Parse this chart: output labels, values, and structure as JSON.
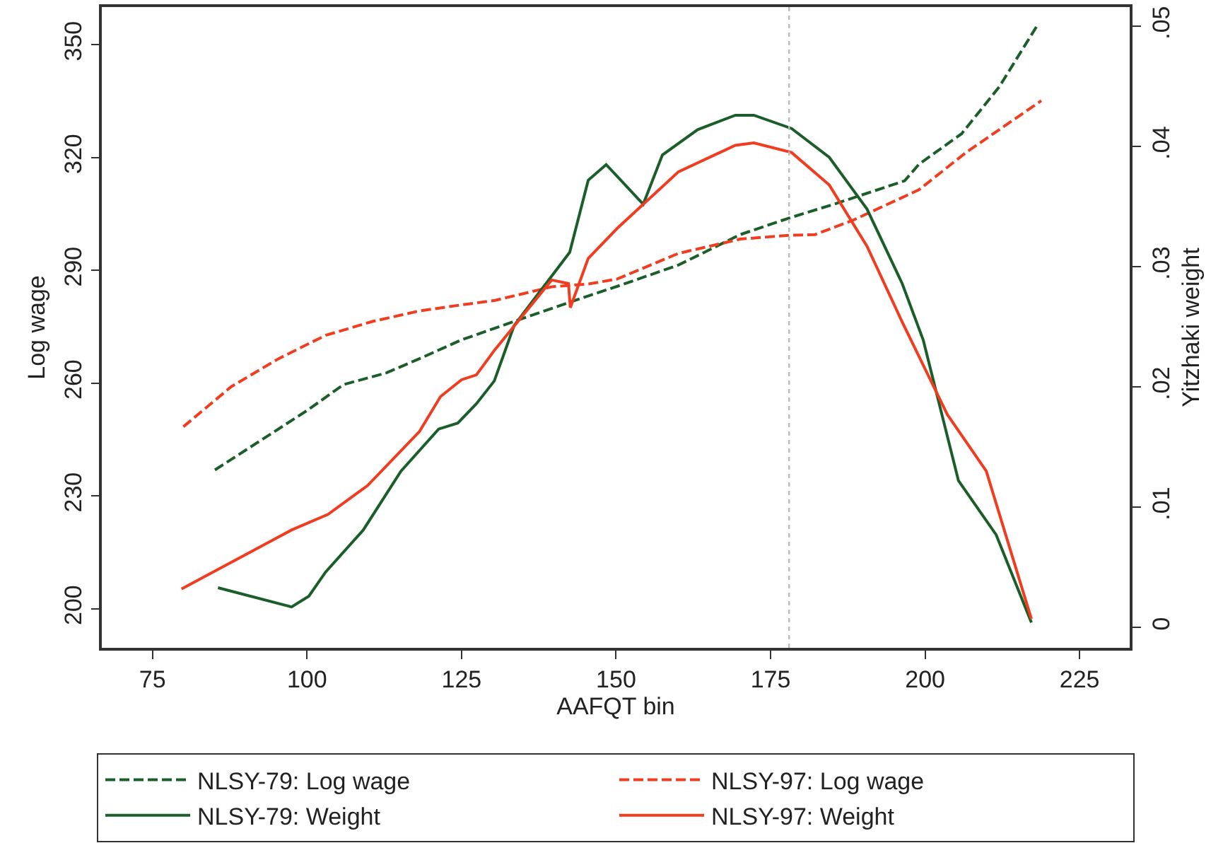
{
  "chart_data": {
    "type": "line",
    "xlabel": "AAFQT bin",
    "ylabel": "Log wage",
    "y2label": "Yitzhaki weight",
    "xlim": [
      66.8,
      233.1
    ],
    "xticks": [
      75,
      100,
      125,
      150,
      175,
      200,
      225
    ],
    "ylim": [
      189.6,
      360
    ],
    "yticks": [
      200,
      230,
      260,
      290,
      320,
      350
    ],
    "y2lim": [
      -0.0017,
      0.0516
    ],
    "y2ticks": [
      {
        "value": 0,
        "label": "0"
      },
      {
        "value": 0.01,
        "label": ".01"
      },
      {
        "value": 0.02,
        "label": ".02"
      },
      {
        "value": 0.03,
        "label": ".03"
      },
      {
        "value": 0.04,
        "label": ".04"
      },
      {
        "value": 0.05,
        "label": ".05"
      }
    ],
    "legend": "bottom",
    "marker": "none",
    "ref_lines": [
      {
        "axis": "x",
        "value": 178,
        "color": "#bbbbbb",
        "line_style": "dotted"
      }
    ],
    "series": [
      {
        "name": "NLSY-79: Log wage",
        "color": "#1b5e2a",
        "line_style": "dashed",
        "x": [
          85.1,
          100,
          105.9,
          112.8,
          118.2,
          125,
          133.5,
          145.7,
          150.3,
          160.1,
          170.1,
          178,
          185.3,
          196.7,
          199,
          205.9,
          212,
          218.1
        ],
        "values": [
          236.9,
          252.7,
          259.6,
          262.7,
          266.5,
          271.5,
          276.4,
          283.3,
          285.8,
          291.4,
          299.5,
          303.9,
          307.6,
          313.8,
          318.2,
          326.3,
          338.8,
          355
        ]
      },
      {
        "name": "NLSY-97: Log wage",
        "color": "#f03c1f",
        "line_style": "dashed",
        "x": [
          80,
          87.7,
          95.4,
          103,
          110.6,
          118.2,
          125,
          130.4,
          139.6,
          145.7,
          150.2,
          160.1,
          170.1,
          178,
          182.2,
          188.3,
          199,
          206.6,
          218.8
        ],
        "values": [
          248.4,
          259,
          266.5,
          272.7,
          276.4,
          279.2,
          280.8,
          282,
          285.6,
          286.4,
          287.7,
          294.5,
          298.3,
          299.3,
          299.5,
          303.3,
          311.4,
          321.3,
          335.1
        ]
      },
      {
        "name": "NLSY-79: Weight",
        "color": "#1b5e2a",
        "line_style": "solid",
        "axis": "y2",
        "x": [
          85.6,
          97.5,
          100.3,
          103,
          109.1,
          115.2,
          121.3,
          124.4,
          127.4,
          130.3,
          133.5,
          142.5,
          145.5,
          148.4,
          154.4,
          157.5,
          163.2,
          169.3,
          172.3,
          178.4,
          184.5,
          190.6,
          196.3,
          199.7,
          205.4,
          211.5,
          217.2
        ],
        "values": [
          0.0033,
          0.0017,
          0.0026,
          0.0046,
          0.0081,
          0.013,
          0.0165,
          0.017,
          0.0186,
          0.0205,
          0.0251,
          0.0312,
          0.0372,
          0.0385,
          0.0352,
          0.0393,
          0.0414,
          0.0426,
          0.0426,
          0.0415,
          0.0391,
          0.0348,
          0.0286,
          0.0239,
          0.0122,
          0.0077,
          0.0004
        ]
      },
      {
        "name": "NLSY-97: Weight",
        "color": "#f03c1f",
        "line_style": "solid",
        "axis": "y2",
        "x": [
          79.7,
          97.5,
          103.4,
          109.8,
          118.2,
          121.6,
          125,
          127.4,
          130.4,
          139.6,
          142.3,
          142.6,
          145.5,
          150.2,
          160.1,
          169.3,
          172.3,
          178.4,
          184.5,
          190.6,
          196.3,
          203.6,
          209.9,
          217.2
        ],
        "values": [
          0.0032,
          0.0081,
          0.0094,
          0.0118,
          0.0163,
          0.0192,
          0.0206,
          0.021,
          0.0231,
          0.0289,
          0.0286,
          0.0266,
          0.0307,
          0.0332,
          0.0379,
          0.0401,
          0.0403,
          0.0395,
          0.0368,
          0.0317,
          0.0254,
          0.0177,
          0.013,
          0.0007
        ]
      }
    ]
  }
}
